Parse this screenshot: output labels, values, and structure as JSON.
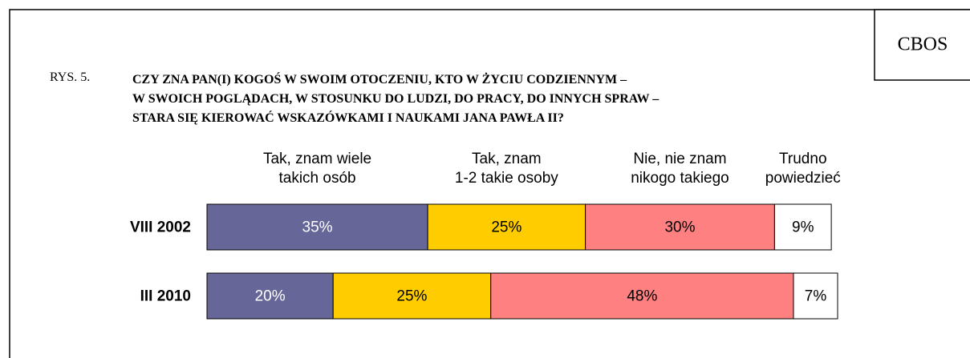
{
  "chart_data": {
    "type": "stacked-bar",
    "badge": "CBOS",
    "figure_label": "RYS. 5.",
    "title": "CZY ZNA PAN(I) KOGOŚ W SWOIM OTOCZENIU, KTO W ŻYCIU CODZIENNYM –\nW SWOICH POGLĄDACH, W STOSUNKU DO LUDZI, DO PRACY, DO INNYCH SPRAW –\nSTARA SIĘ KIEROWAĆ WSKAZÓWKAMI I NAUKAMI JANA PAWŁA II?",
    "categories": [
      "VIII 2002",
      "III 2010"
    ],
    "series": [
      {
        "name": "Tak, znam wiele\ntakich osób",
        "color": "#666699",
        "label_color": "#ffffff",
        "values": [
          35,
          20
        ],
        "value_labels": [
          "35%",
          "20%"
        ]
      },
      {
        "name": "Tak, znam\n1-2 takie osoby",
        "color": "#ffcc00",
        "label_color": "#000000",
        "values": [
          25,
          25
        ],
        "value_labels": [
          "25%",
          "25%"
        ]
      },
      {
        "name": "Nie, nie znam\nnikogo takiego",
        "color": "#ff8080",
        "label_color": "#000000",
        "values": [
          30,
          48
        ],
        "value_labels": [
          "30%",
          "48%"
        ]
      },
      {
        "name": "Trudno\npowiedzieć",
        "color": "#ffffff",
        "label_color": "#000000",
        "values": [
          9,
          7
        ],
        "value_labels": [
          "9%",
          "7%"
        ]
      }
    ]
  }
}
